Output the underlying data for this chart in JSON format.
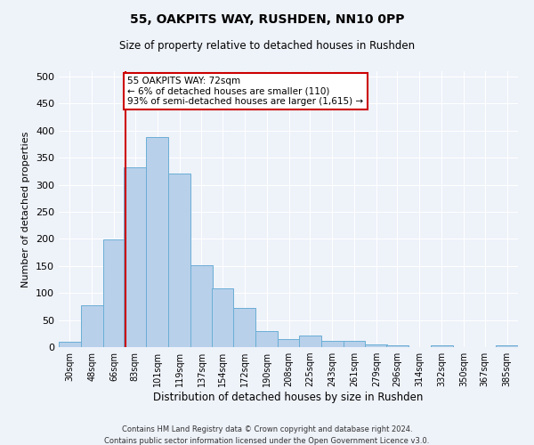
{
  "title": "55, OAKPITS WAY, RUSHDEN, NN10 0PP",
  "subtitle": "Size of property relative to detached houses in Rushden",
  "xlabel": "Distribution of detached houses by size in Rushden",
  "ylabel": "Number of detached properties",
  "footer_line1": "Contains HM Land Registry data © Crown copyright and database right 2024.",
  "footer_line2": "Contains public sector information licensed under the Open Government Licence v3.0.",
  "bar_labels": [
    "30sqm",
    "48sqm",
    "66sqm",
    "83sqm",
    "101sqm",
    "119sqm",
    "137sqm",
    "154sqm",
    "172sqm",
    "190sqm",
    "208sqm",
    "225sqm",
    "243sqm",
    "261sqm",
    "279sqm",
    "296sqm",
    "314sqm",
    "332sqm",
    "350sqm",
    "367sqm",
    "385sqm"
  ],
  "bar_values": [
    10,
    78,
    199,
    333,
    388,
    320,
    151,
    108,
    73,
    30,
    15,
    21,
    12,
    12,
    5,
    4,
    0,
    3,
    0,
    0,
    3
  ],
  "bar_color": "#b8d0ea",
  "bar_edge_color": "#6aaed6",
  "annotation_text": "55 OAKPITS WAY: 72sqm\n← 6% of detached houses are smaller (110)\n93% of semi-detached houses are larger (1,615) →",
  "bin_centers": [
    30,
    48,
    66,
    83,
    101,
    119,
    137,
    154,
    172,
    190,
    208,
    225,
    243,
    261,
    279,
    296,
    314,
    332,
    350,
    367,
    385
  ],
  "bin_width": 18,
  "property_line_x": 75,
  "ylim": [
    0,
    510
  ],
  "yticks": [
    0,
    50,
    100,
    150,
    200,
    250,
    300,
    350,
    400,
    450,
    500
  ],
  "annotation_box_color": "#ffffff",
  "annotation_box_edge": "#cc0000",
  "line_color": "#cc0000",
  "background_color": "#eef2f9",
  "grid_color": "#ffffff",
  "title_fontsize": 10,
  "subtitle_fontsize": 8.5,
  "ylabel_fontsize": 8,
  "xlabel_fontsize": 8.5,
  "tick_fontsize": 7,
  "annotation_fontsize": 7.5,
  "footer_fontsize": 6
}
